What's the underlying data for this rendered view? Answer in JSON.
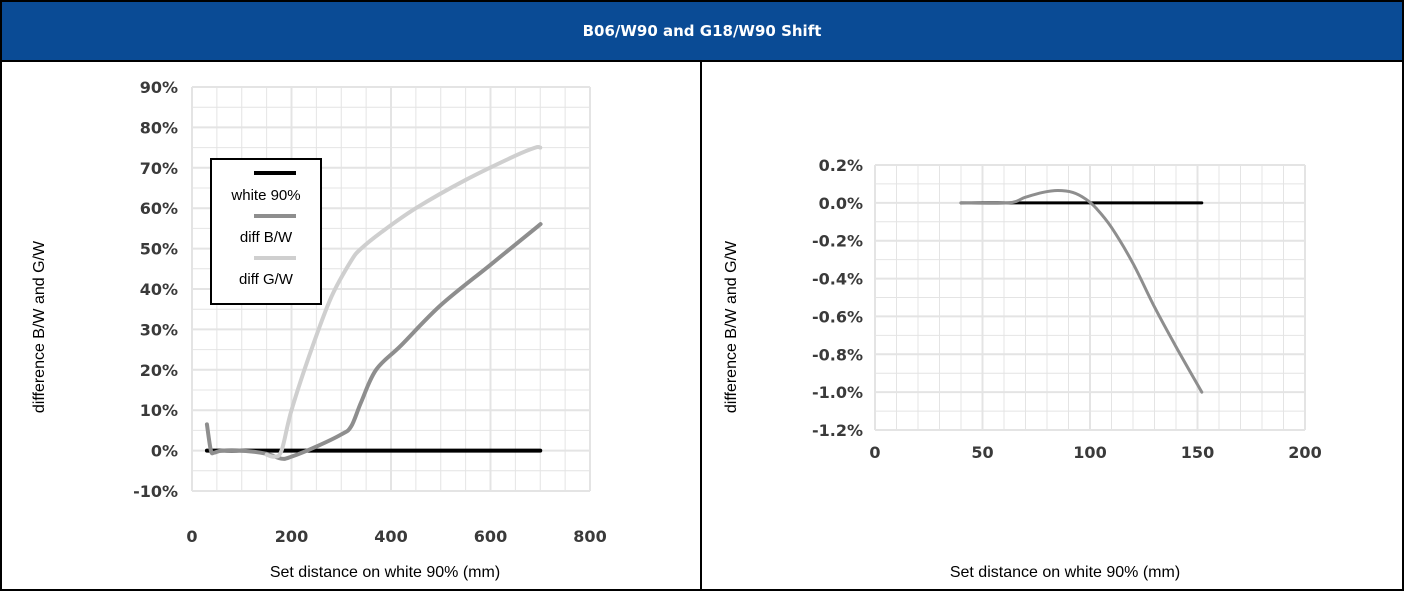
{
  "header": {
    "title": "B06/W90 and G18/W90 Shift"
  },
  "colors": {
    "header_bg": "#0a4b95",
    "white_series": "#000000",
    "bw_series": "#8e8e8e",
    "gw_series": "#cfcfcf",
    "grid": "#e4e4e4"
  },
  "chart_data": [
    {
      "type": "line",
      "title": "",
      "xlabel": "Set distance on white 90% (mm)",
      "ylabel": "difference B/W and G/W",
      "xlim": [
        0,
        800
      ],
      "ylim": [
        -10,
        90
      ],
      "x_ticks": [
        "0",
        "200",
        "400",
        "600",
        "800"
      ],
      "y_ticks": [
        "-10%",
        "0%",
        "10%",
        "20%",
        "30%",
        "40%",
        "50%",
        "60%",
        "70%",
        "80%",
        "90%"
      ],
      "legend_position": "upper-left inside",
      "grid": true,
      "series": [
        {
          "name": "white 90%",
          "color": "#000000",
          "x": [
            30,
            700
          ],
          "y": [
            0,
            0
          ]
        },
        {
          "name": "diff B/W",
          "color": "#8e8e8e",
          "x": [
            30,
            38,
            45,
            60,
            100,
            150,
            180,
            200,
            250,
            300,
            320,
            340,
            370,
            420,
            500,
            600,
            690,
            700
          ],
          "y": [
            6.5,
            0,
            -0.5,
            0,
            0,
            -0.8,
            -2,
            -1.5,
            1,
            4,
            6,
            12,
            20,
            26,
            36,
            46,
            55,
            56
          ]
        },
        {
          "name": "diff G/W",
          "color": "#cfcfcf",
          "x": [
            150,
            165,
            180,
            200,
            240,
            280,
            320,
            340,
            380,
            450,
            550,
            650,
            690,
            700
          ],
          "y": [
            -1,
            -1.5,
            0,
            10,
            25,
            38,
            47,
            50,
            54,
            60,
            67,
            73,
            75,
            75
          ]
        }
      ]
    },
    {
      "type": "line",
      "title": "",
      "xlabel": "Set distance on white 90% (mm)",
      "ylabel": "difference B/W and G/W",
      "xlim": [
        0,
        200
      ],
      "ylim": [
        -1.2,
        0.2
      ],
      "x_ticks": [
        "0",
        "50",
        "100",
        "150",
        "200"
      ],
      "y_ticks": [
        "-1.2%",
        "-1.0%",
        "-0.8%",
        "-0.6%",
        "-0.4%",
        "-0.2%",
        "0.0%",
        "0.2%"
      ],
      "grid": true,
      "series": [
        {
          "color": "#000000",
          "x": [
            40,
            152
          ],
          "y": [
            0,
            0
          ]
        },
        {
          "color": "#8e8e8e",
          "x": [
            40,
            62,
            70,
            78,
            85,
            92,
            98,
            103,
            110,
            120,
            130,
            140,
            152
          ],
          "y": [
            0,
            0,
            0.03,
            0.055,
            0.065,
            0.055,
            0.02,
            -0.03,
            -0.13,
            -0.32,
            -0.55,
            -0.76,
            -1.0
          ]
        }
      ]
    }
  ]
}
